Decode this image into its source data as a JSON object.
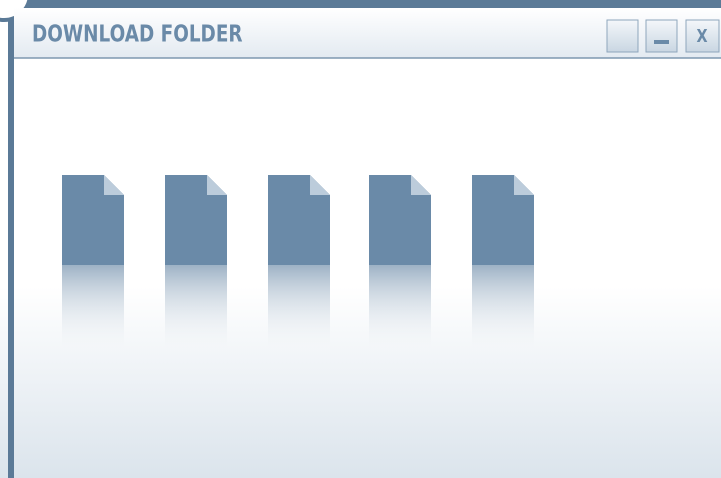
{
  "window": {
    "title": "DOWNLOAD FOLDER",
    "close_label": "X"
  }
}
